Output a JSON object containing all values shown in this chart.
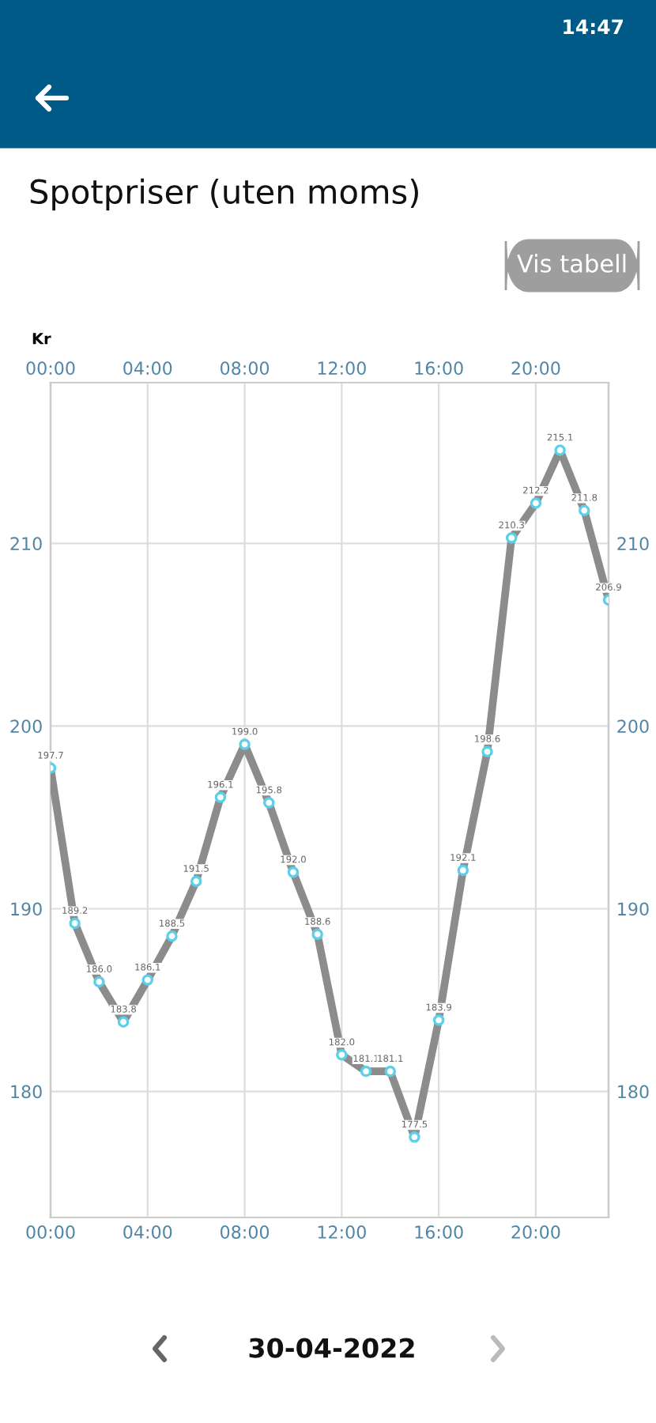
{
  "chart_data": {
    "type": "line",
    "title": "Spotpriser (uten moms)",
    "ylabel": "Kr",
    "value_labels": [
      "197.7",
      "189.2",
      "186.0",
      "183.8",
      "186.1",
      "188.5",
      "191.5",
      "196.1",
      "199.0",
      "195.8",
      "192.0",
      "188.6",
      "182.0",
      "181.1",
      "181.1",
      "177.5",
      "183.9",
      "192.1",
      "198.6",
      "210.3",
      "212.2",
      "215.1",
      "211.8",
      "206.9"
    ],
    "x": [
      0,
      1,
      2,
      3,
      4,
      5,
      6,
      7,
      8,
      9,
      10,
      11,
      12,
      13,
      14,
      15,
      16,
      17,
      18,
      19,
      20,
      21,
      22,
      23
    ],
    "series": [
      {
        "color": "#8c8c8c",
        "values": [
          197.7,
          189.2,
          186.0,
          183.8,
          186.1,
          188.5,
          191.5,
          196.1,
          199.0,
          195.8,
          192.0,
          188.6,
          182.0,
          181.1,
          181.1,
          177.5,
          183.9,
          192.1,
          198.6,
          210.3,
          212.2,
          215.1,
          211.8,
          206.9
        ]
      }
    ],
    "xlim": [
      0,
      23
    ],
    "xticks": [
      {
        "value": 0,
        "label": "00:00"
      },
      {
        "value": 4,
        "label": "04:00"
      },
      {
        "value": 8,
        "label": "08:00"
      },
      {
        "value": 12,
        "label": "12:00"
      },
      {
        "value": 16,
        "label": "16:00"
      },
      {
        "value": 20,
        "label": "20:00"
      }
    ],
    "x2lim": [
      0,
      23
    ],
    "x2ticks": [
      {
        "value": 0,
        "label": "00:00"
      },
      {
        "value": 4,
        "label": "04:00"
      },
      {
        "value": 8,
        "label": "08:00"
      },
      {
        "value": 12,
        "label": "12:00"
      },
      {
        "value": 16,
        "label": "16:00"
      },
      {
        "value": 20,
        "label": "20:00"
      }
    ],
    "ylim": [
      173.1,
      218.8
    ],
    "yticks": [
      180,
      190,
      200,
      210
    ],
    "y2lim": [
      173.1,
      218.8
    ],
    "y2ticks": [
      180,
      190,
      200,
      210
    ],
    "grid": true,
    "marker": "circle",
    "line_style": "solid",
    "annotations": [
      "14:47",
      "Vis tabell",
      "30-04-2022"
    ]
  }
}
